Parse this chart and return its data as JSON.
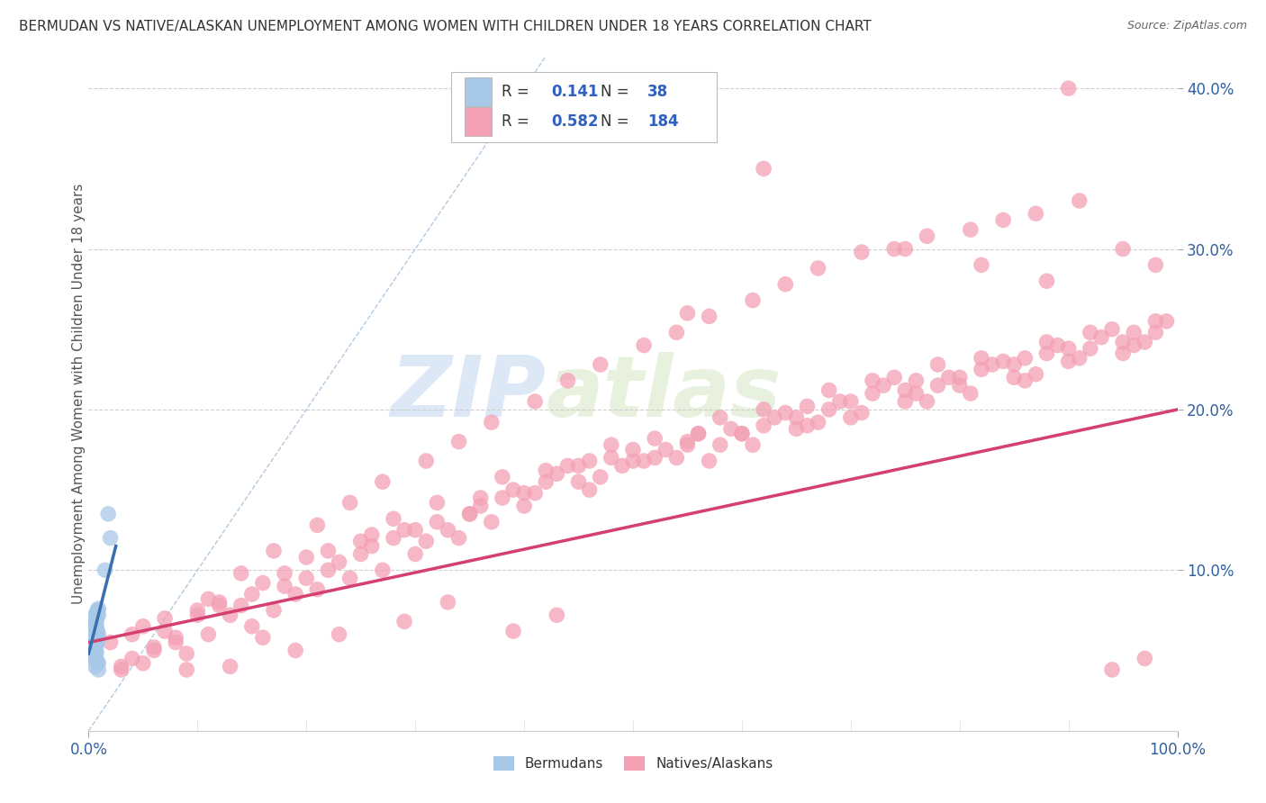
{
  "title": "BERMUDAN VS NATIVE/ALASKAN UNEMPLOYMENT AMONG WOMEN WITH CHILDREN UNDER 18 YEARS CORRELATION CHART",
  "source": "Source: ZipAtlas.com",
  "ylabel": "Unemployment Among Women with Children Under 18 years",
  "watermark_zip": "ZIP",
  "watermark_atlas": "atlas",
  "legend_r_blue": "0.141",
  "legend_n_blue": "38",
  "legend_r_pink": "0.582",
  "legend_n_pink": "184",
  "blue_color": "#a8c8e8",
  "blue_edge_color": "#7bafd4",
  "pink_color": "#f4a0b5",
  "pink_edge_color": "#e07090",
  "blue_line_color": "#3a6faf",
  "pink_line_color": "#d44070",
  "diagonal_color": "#a0bcd8",
  "grid_color": "#d0d0d0",
  "xlim": [
    0.0,
    1.0
  ],
  "ylim": [
    0.0,
    0.42
  ],
  "yticks": [
    0.1,
    0.2,
    0.3,
    0.4
  ],
  "ytick_labels": [
    "10.0%",
    "20.0%",
    "30.0%",
    "40.0%"
  ],
  "xtick_positions": [
    0.0,
    1.0
  ],
  "xtick_labels": [
    "0.0%",
    "100.0%"
  ],
  "blue_x": [
    0.005,
    0.007,
    0.008,
    0.006,
    0.009,
    0.005,
    0.007,
    0.006,
    0.008,
    0.005,
    0.007,
    0.009,
    0.006,
    0.008,
    0.005,
    0.007,
    0.006,
    0.009,
    0.008,
    0.005,
    0.007,
    0.006,
    0.008,
    0.009,
    0.005,
    0.007,
    0.006,
    0.008,
    0.005,
    0.007,
    0.009,
    0.006,
    0.008,
    0.005,
    0.007,
    0.02,
    0.018,
    0.015
  ],
  "blue_y": [
    0.065,
    0.055,
    0.075,
    0.045,
    0.06,
    0.05,
    0.07,
    0.04,
    0.055,
    0.065,
    0.048,
    0.072,
    0.058,
    0.062,
    0.052,
    0.068,
    0.044,
    0.076,
    0.056,
    0.046,
    0.066,
    0.054,
    0.074,
    0.042,
    0.06,
    0.05,
    0.07,
    0.058,
    0.048,
    0.064,
    0.038,
    0.072,
    0.043,
    0.053,
    0.063,
    0.12,
    0.135,
    0.1
  ],
  "pink_x": [
    0.02,
    0.04,
    0.06,
    0.03,
    0.05,
    0.07,
    0.08,
    0.09,
    0.1,
    0.12,
    0.11,
    0.13,
    0.15,
    0.14,
    0.16,
    0.18,
    0.17,
    0.19,
    0.2,
    0.22,
    0.21,
    0.23,
    0.25,
    0.24,
    0.26,
    0.28,
    0.27,
    0.29,
    0.3,
    0.32,
    0.31,
    0.33,
    0.35,
    0.34,
    0.36,
    0.38,
    0.37,
    0.39,
    0.4,
    0.42,
    0.41,
    0.43,
    0.45,
    0.44,
    0.46,
    0.48,
    0.47,
    0.49,
    0.5,
    0.52,
    0.51,
    0.53,
    0.55,
    0.54,
    0.56,
    0.58,
    0.57,
    0.59,
    0.6,
    0.62,
    0.61,
    0.63,
    0.65,
    0.64,
    0.66,
    0.68,
    0.67,
    0.69,
    0.7,
    0.72,
    0.71,
    0.73,
    0.75,
    0.74,
    0.76,
    0.78,
    0.77,
    0.79,
    0.8,
    0.82,
    0.81,
    0.83,
    0.85,
    0.84,
    0.86,
    0.88,
    0.87,
    0.89,
    0.9,
    0.92,
    0.91,
    0.93,
    0.95,
    0.94,
    0.96,
    0.98,
    0.97,
    0.99,
    0.15,
    0.25,
    0.35,
    0.45,
    0.55,
    0.65,
    0.75,
    0.85,
    0.95,
    0.2,
    0.4,
    0.6,
    0.8,
    0.1,
    0.3,
    0.5,
    0.7,
    0.9,
    0.05,
    0.08,
    0.12,
    0.18,
    0.22,
    0.28,
    0.32,
    0.38,
    0.42,
    0.48,
    0.52,
    0.58,
    0.62,
    0.68,
    0.72,
    0.78,
    0.82,
    0.88,
    0.92,
    0.98,
    0.04,
    0.06,
    0.16,
    0.26,
    0.36,
    0.46,
    0.56,
    0.66,
    0.76,
    0.86,
    0.96,
    0.03,
    0.07,
    0.11,
    0.14,
    0.17,
    0.21,
    0.24,
    0.27,
    0.31,
    0.34,
    0.37,
    0.41,
    0.44,
    0.47,
    0.51,
    0.54,
    0.57,
    0.61,
    0.64,
    0.67,
    0.71,
    0.74,
    0.77,
    0.81,
    0.84,
    0.87,
    0.91,
    0.94,
    0.97,
    0.09,
    0.13,
    0.19,
    0.23,
    0.29,
    0.33,
    0.39,
    0.43
  ],
  "pink_y": [
    0.055,
    0.06,
    0.05,
    0.04,
    0.065,
    0.07,
    0.055,
    0.048,
    0.075,
    0.08,
    0.06,
    0.072,
    0.065,
    0.078,
    0.058,
    0.09,
    0.075,
    0.085,
    0.095,
    0.1,
    0.088,
    0.105,
    0.11,
    0.095,
    0.115,
    0.12,
    0.1,
    0.125,
    0.11,
    0.13,
    0.118,
    0.125,
    0.135,
    0.12,
    0.14,
    0.145,
    0.13,
    0.15,
    0.14,
    0.155,
    0.148,
    0.16,
    0.155,
    0.165,
    0.15,
    0.17,
    0.158,
    0.165,
    0.175,
    0.17,
    0.168,
    0.175,
    0.18,
    0.17,
    0.185,
    0.178,
    0.168,
    0.188,
    0.185,
    0.19,
    0.178,
    0.195,
    0.188,
    0.198,
    0.19,
    0.2,
    0.192,
    0.205,
    0.195,
    0.21,
    0.198,
    0.215,
    0.205,
    0.22,
    0.21,
    0.215,
    0.205,
    0.22,
    0.215,
    0.225,
    0.21,
    0.228,
    0.22,
    0.23,
    0.218,
    0.235,
    0.222,
    0.24,
    0.23,
    0.238,
    0.232,
    0.245,
    0.235,
    0.25,
    0.24,
    0.248,
    0.242,
    0.255,
    0.085,
    0.118,
    0.135,
    0.165,
    0.178,
    0.195,
    0.212,
    0.228,
    0.242,
    0.108,
    0.148,
    0.185,
    0.22,
    0.072,
    0.125,
    0.168,
    0.205,
    0.238,
    0.042,
    0.058,
    0.078,
    0.098,
    0.112,
    0.132,
    0.142,
    0.158,
    0.162,
    0.178,
    0.182,
    0.195,
    0.2,
    0.212,
    0.218,
    0.228,
    0.232,
    0.242,
    0.248,
    0.255,
    0.045,
    0.052,
    0.092,
    0.122,
    0.145,
    0.168,
    0.185,
    0.202,
    0.218,
    0.232,
    0.248,
    0.038,
    0.062,
    0.082,
    0.098,
    0.112,
    0.128,
    0.142,
    0.155,
    0.168,
    0.18,
    0.192,
    0.205,
    0.218,
    0.228,
    0.24,
    0.248,
    0.258,
    0.268,
    0.278,
    0.288,
    0.298,
    0.3,
    0.308,
    0.312,
    0.318,
    0.322,
    0.33,
    0.038,
    0.045,
    0.038,
    0.04,
    0.05,
    0.06,
    0.068,
    0.08,
    0.062,
    0.072
  ],
  "pink_outliers_x": [
    0.55,
    0.62,
    0.75,
    0.82,
    0.88,
    0.9,
    0.95,
    0.98
  ],
  "pink_outliers_y": [
    0.26,
    0.35,
    0.3,
    0.29,
    0.28,
    0.4,
    0.3,
    0.29
  ],
  "pink_line_x0": 0.0,
  "pink_line_x1": 1.0,
  "pink_line_y0": 0.055,
  "pink_line_y1": 0.2,
  "blue_line_x0": 0.0,
  "blue_line_x1": 0.025,
  "blue_line_y0": 0.048,
  "blue_line_y1": 0.115
}
